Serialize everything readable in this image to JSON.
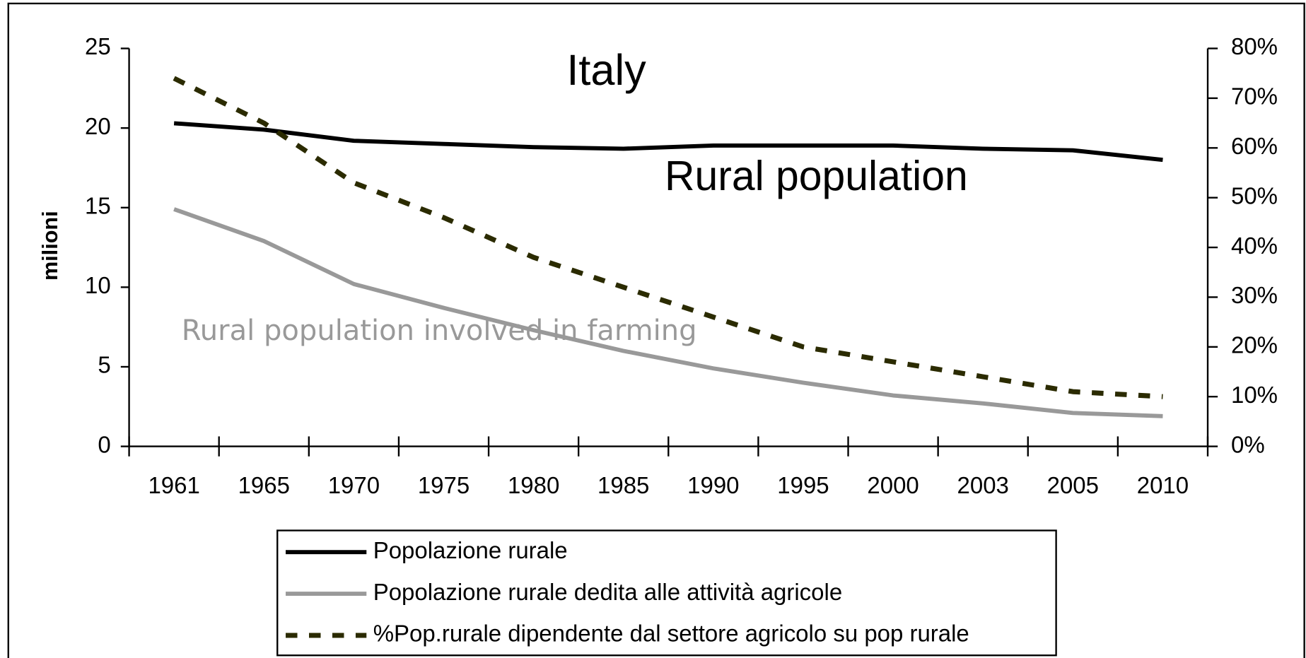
{
  "chart_data": {
    "type": "line",
    "annotations": [
      "Italy",
      "Rural population",
      "Rural population involved in farming"
    ],
    "y_label": "milioni",
    "categories": [
      "1961",
      "1965",
      "1970",
      "1975",
      "1980",
      "1985",
      "1990",
      "1995",
      "2000",
      "2003",
      "2005",
      "2010"
    ],
    "series": [
      {
        "name": "Popolazione rurale",
        "color": "#000000",
        "line_style": "solid",
        "values": [
          20.3,
          19.9,
          19.2,
          19.0,
          18.8,
          18.7,
          18.9,
          18.9,
          18.9,
          18.7,
          18.6,
          18.0
        ]
      },
      {
        "name": "Popolazione rurale dedita alle attività agricole",
        "color": "#999999",
        "line_style": "solid",
        "values": [
          14.9,
          12.9,
          10.2,
          8.7,
          7.3,
          6.0,
          4.9,
          4.0,
          3.2,
          2.7,
          2.1,
          1.9
        ]
      },
      {
        "name": "%Pop.rurale dipendente dal settore agricolo su pop rurale",
        "color": "#2b2b00",
        "line_style": "dashed",
        "axis": "y2",
        "values": [
          74,
          65,
          53,
          46,
          38,
          32,
          26,
          20,
          17,
          14,
          11,
          10
        ]
      }
    ],
    "ylim": [
      0,
      25
    ],
    "yticks": [
      0,
      5,
      10,
      15,
      20,
      25
    ],
    "y2lim": [
      0,
      80
    ],
    "y2ticks": [
      {
        "value": 0,
        "label": "0%"
      },
      {
        "value": 10,
        "label": "10%"
      },
      {
        "value": 20,
        "label": "20%"
      },
      {
        "value": 30,
        "label": "30%"
      },
      {
        "value": 40,
        "label": "40%"
      },
      {
        "value": 50,
        "label": "50%"
      },
      {
        "value": 60,
        "label": "60%"
      },
      {
        "value": 70,
        "label": "70%"
      },
      {
        "value": 80,
        "label": "80%"
      }
    ],
    "grid": false
  }
}
